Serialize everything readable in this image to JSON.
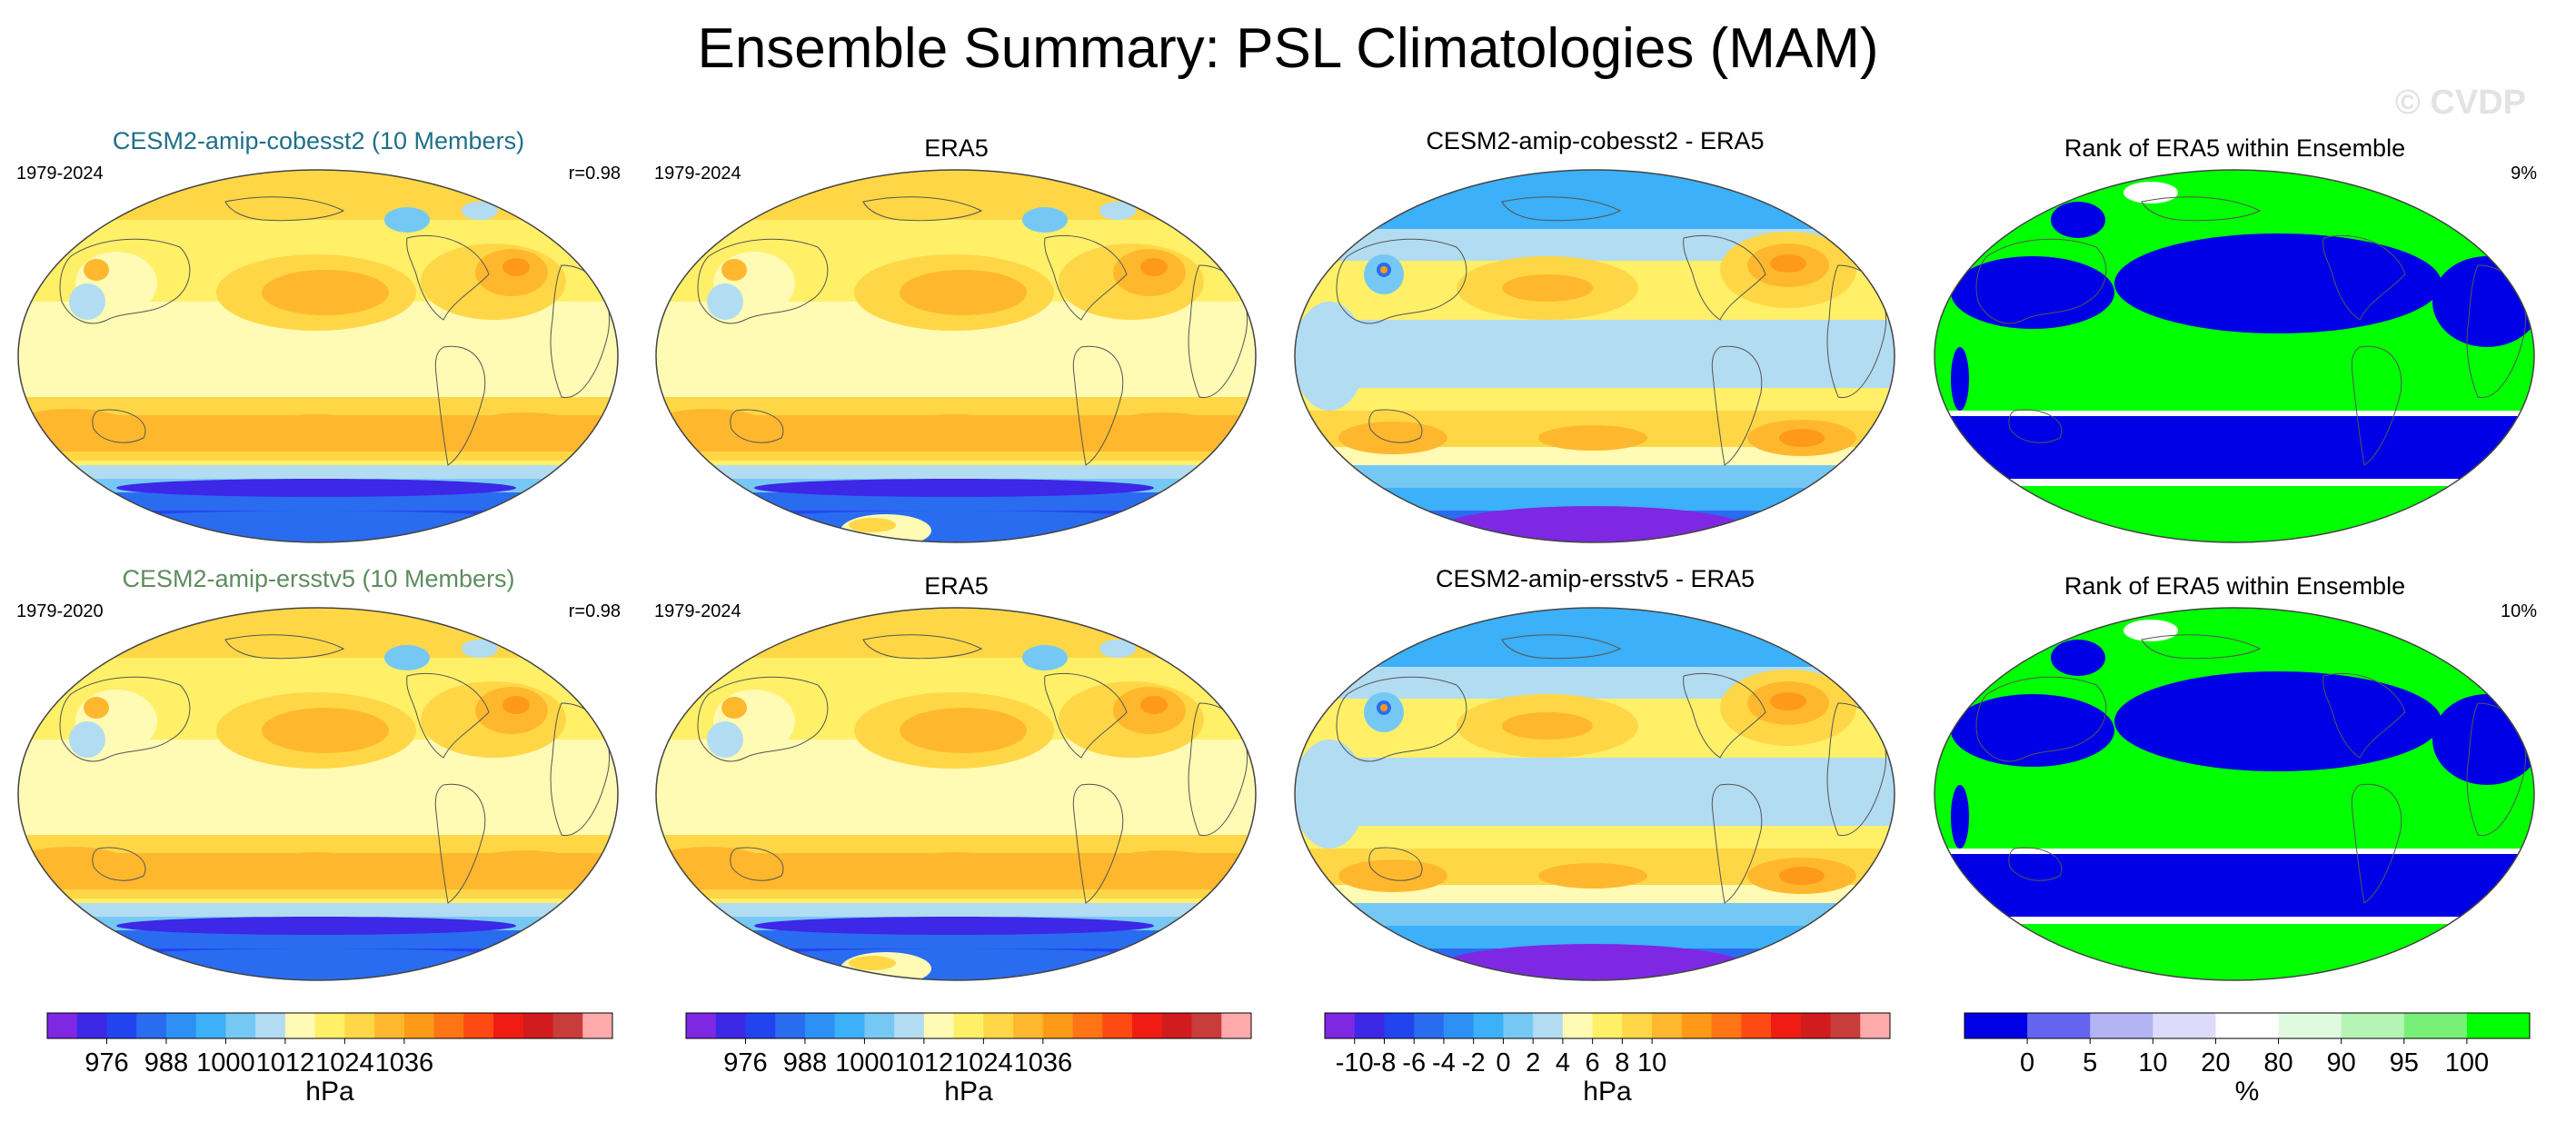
{
  "title": "Ensemble Summary: PSL Climatologies (MAM)",
  "watermark": "© CVDP",
  "colors": {
    "model1_title": "#1f6f89",
    "model2_title": "#5e8c5f",
    "rank_blue": "#0000e6",
    "rank_green": "#00ff00",
    "land_outline": "#555555"
  },
  "panels": [
    {
      "kind": "model",
      "title": "CESM2-amip-cobesst2 (10 Members)",
      "years": "1979-2024",
      "corner": "r=0.98",
      "title_color": "#1f6f89"
    },
    {
      "kind": "obs",
      "title": "ERA5",
      "years": "1979-2024",
      "corner": ""
    },
    {
      "kind": "diff",
      "title": "CESM2-amip-cobesst2 - ERA5",
      "years": "",
      "corner": ""
    },
    {
      "kind": "rank",
      "title": "Rank of ERA5 within Ensemble",
      "years": "",
      "corner": "9%"
    },
    {
      "kind": "model",
      "title": "CESM2-amip-ersstv5 (10 Members)",
      "years": "1979-2020",
      "corner": "r=0.98",
      "title_color": "#5e8c5f"
    },
    {
      "kind": "obs",
      "title": "ERA5",
      "years": "1979-2024",
      "corner": ""
    },
    {
      "kind": "diff",
      "title": "CESM2-amip-ersstv5 - ERA5",
      "years": "",
      "corner": ""
    },
    {
      "kind": "rank",
      "title": "Rank of ERA5 within Ensemble",
      "years": "",
      "corner": "10%"
    }
  ],
  "colorbars": [
    {
      "unit": "hPa",
      "colors": [
        "#7e28e4",
        "#3c28e6",
        "#2244f0",
        "#2a6cf0",
        "#2e90f4",
        "#3cb0f8",
        "#76c8f4",
        "#b2dcf2",
        "#fffab4",
        "#fff068",
        "#ffd746",
        "#ffb82e",
        "#ff9a18",
        "#ff7414",
        "#ff4a14",
        "#f01c14",
        "#d01c1c",
        "#c83c3c",
        "#ffaaaa"
      ],
      "labels": [
        "976",
        "988",
        "1000",
        "1012",
        "1024",
        "1036"
      ],
      "label_bins": [
        2,
        4,
        6,
        8,
        10,
        12
      ]
    },
    {
      "unit": "hPa",
      "colors": [
        "#7e28e4",
        "#3c28e6",
        "#2244f0",
        "#2a6cf0",
        "#2e90f4",
        "#3cb0f8",
        "#76c8f4",
        "#b2dcf2",
        "#fffab4",
        "#fff068",
        "#ffd746",
        "#ffb82e",
        "#ff9a18",
        "#ff7414",
        "#ff4a14",
        "#f01c14",
        "#d01c1c",
        "#c83c3c",
        "#ffaaaa"
      ],
      "labels": [
        "976",
        "988",
        "1000",
        "1012",
        "1024",
        "1036"
      ],
      "label_bins": [
        2,
        4,
        6,
        8,
        10,
        12
      ]
    },
    {
      "unit": "hPa",
      "colors": [
        "#7e28e4",
        "#3c28e6",
        "#2244f0",
        "#2a6cf0",
        "#2e90f4",
        "#3cb0f8",
        "#76c8f4",
        "#b2dcf2",
        "#fffab4",
        "#fff068",
        "#ffd746",
        "#ffb82e",
        "#ff9a18",
        "#ff7414",
        "#ff4a14",
        "#f01c14",
        "#d01c1c",
        "#c83c3c",
        "#ffaaaa"
      ],
      "labels": [
        "-10",
        "-8",
        "-6",
        "-4",
        "-2",
        "0",
        "2",
        "4",
        "6",
        "8",
        "10"
      ],
      "label_bins": [
        1,
        2,
        3,
        4,
        5,
        6,
        7,
        8,
        9,
        10,
        11
      ]
    },
    {
      "unit": "%",
      "colors": [
        "#0000e6",
        "#6464f0",
        "#b4b4f4",
        "#dcdcfa",
        "#ffffff",
        "#e0fae0",
        "#b4f4b4",
        "#78f078",
        "#00ff00"
      ],
      "labels": [
        "0",
        "5",
        "10",
        "20",
        "80",
        "90",
        "95",
        "100"
      ],
      "label_bins": [
        1,
        2,
        3,
        4,
        5,
        6,
        7,
        8
      ]
    }
  ],
  "chart_data": [
    {
      "type": "heatmap",
      "panel": "CESM2-amip-cobesst2 (10 Members)",
      "field": "PSL climatology (MAM)",
      "period": "1979-2024",
      "units": "hPa",
      "pattern_correlation": 0.98
    },
    {
      "type": "heatmap",
      "panel": "ERA5",
      "field": "PSL climatology (MAM)",
      "period": "1979-2024",
      "units": "hPa"
    },
    {
      "type": "heatmap",
      "panel": "CESM2-amip-cobesst2 - ERA5",
      "field": "PSL difference",
      "units": "hPa",
      "range": [
        -10,
        10
      ]
    },
    {
      "type": "heatmap",
      "panel": "Rank of ERA5 within Ensemble",
      "units": "%",
      "summary": "9%"
    },
    {
      "type": "heatmap",
      "panel": "CESM2-amip-ersstv5 (10 Members)",
      "field": "PSL climatology (MAM)",
      "period": "1979-2020",
      "units": "hPa",
      "pattern_correlation": 0.98
    },
    {
      "type": "heatmap",
      "panel": "ERA5",
      "field": "PSL climatology (MAM)",
      "period": "1979-2024",
      "units": "hPa"
    },
    {
      "type": "heatmap",
      "panel": "CESM2-amip-ersstv5 - ERA5",
      "field": "PSL difference",
      "units": "hPa",
      "range": [
        -10,
        10
      ]
    },
    {
      "type": "heatmap",
      "panel": "Rank of ERA5 within Ensemble",
      "units": "%",
      "summary": "10%"
    }
  ]
}
